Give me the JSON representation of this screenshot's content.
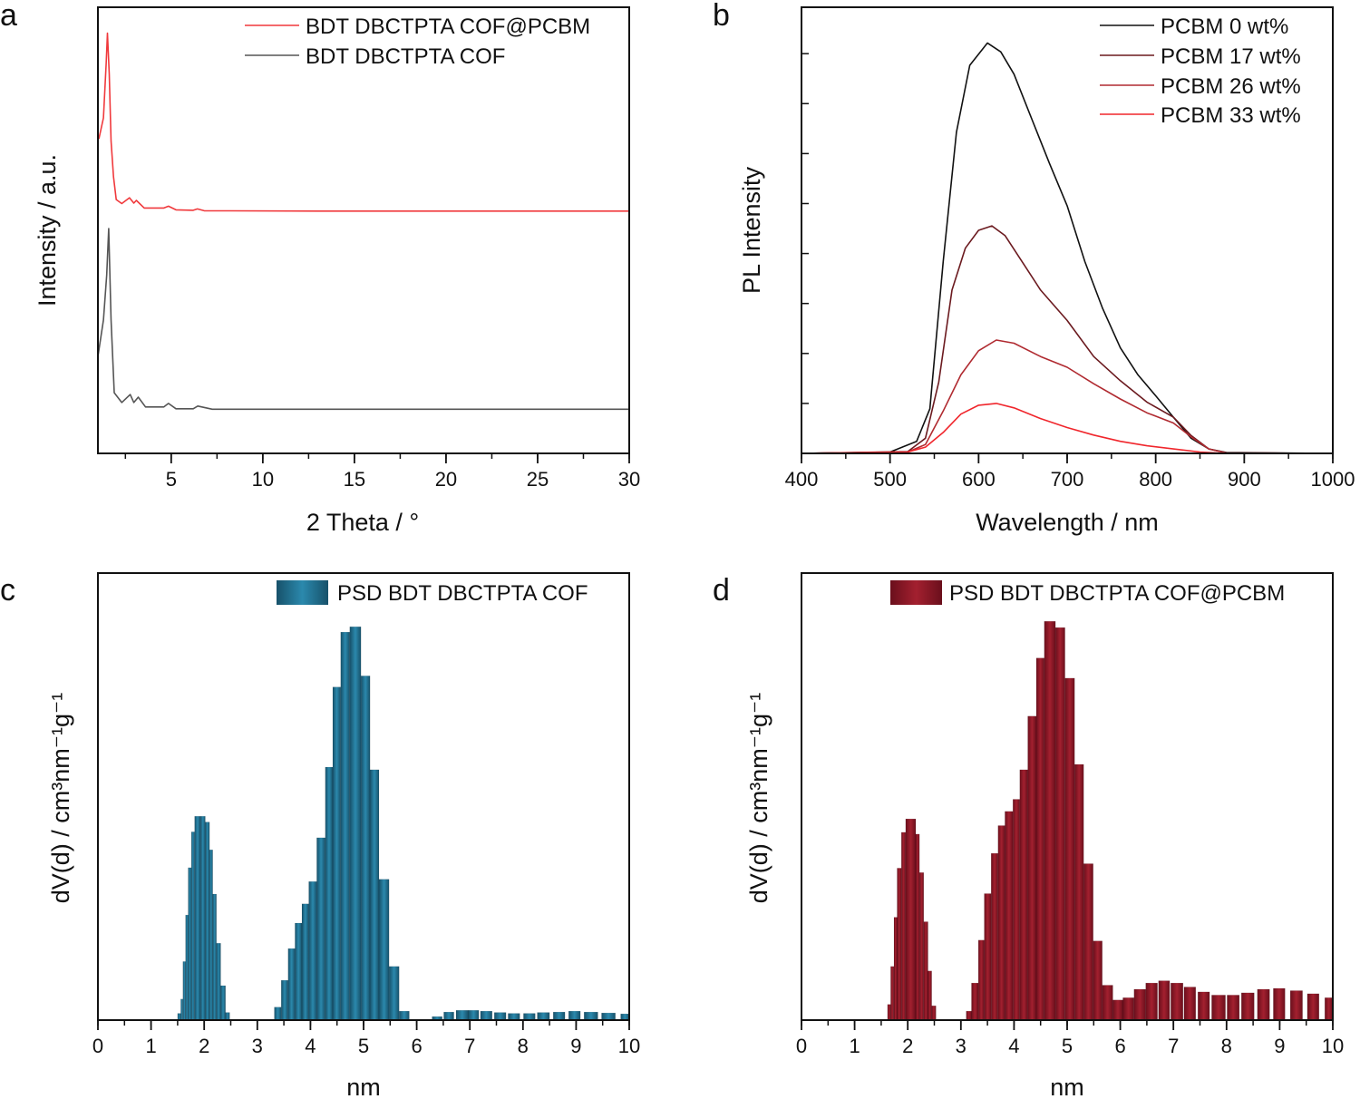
{
  "chart_data": [
    {
      "panel": "a",
      "type": "line",
      "xlabel": "2 Theta / °",
      "ylabel": "Intensity / a.u.",
      "xlim": [
        1,
        30
      ],
      "ylim": [
        0,
        100
      ],
      "xticks": [
        5,
        10,
        15,
        20,
        25,
        30
      ],
      "xminor_step": 2.5,
      "legend_position": "top-right",
      "series": [
        {
          "name": "BDT DBCTPTA COF@PCBM",
          "color": "#f0393c",
          "x": [
            1.0,
            1.06,
            1.3,
            1.45,
            1.52,
            1.62,
            1.72,
            1.85,
            2.0,
            2.3,
            2.72,
            2.96,
            3.1,
            3.53,
            4.6,
            4.85,
            5.26,
            6.2,
            6.43,
            6.8,
            13,
            30
          ],
          "y": [
            71.1,
            70.6,
            75.2,
            87.4,
            94.2,
            85,
            70,
            62,
            56.9,
            56,
            57.3,
            56.1,
            56.7,
            55,
            55,
            55.4,
            54.6,
            54.5,
            54.8,
            54.4,
            54.3,
            54.3
          ]
        },
        {
          "name": "BDT DBCTPTA COF",
          "color": "#555555",
          "x": [
            1.0,
            1.3,
            1.48,
            1.59,
            1.72,
            1.89,
            2.3,
            2.76,
            2.96,
            3.2,
            3.6,
            4.6,
            4.85,
            5.26,
            6.2,
            6.45,
            7.24,
            30
          ],
          "y": [
            21.7,
            29.9,
            40,
            50.4,
            29.9,
            13.6,
            11.4,
            13.2,
            11.4,
            12.6,
            10.4,
            10.4,
            11.2,
            10.0,
            10.0,
            10.6,
            9.9,
            9.9
          ]
        }
      ]
    },
    {
      "panel": "b",
      "type": "line",
      "xlabel": "Wavelength / nm",
      "ylabel": "PL Intensity",
      "xlim": [
        400,
        1000
      ],
      "ylim": [
        0,
        100
      ],
      "xticks": [
        400,
        500,
        600,
        700,
        800,
        900,
        1000
      ],
      "xminor_step": 50,
      "yticks_unlabeled": [
        11.2,
        22.4,
        33.6,
        44.8,
        56,
        67.2,
        78.4,
        89.6
      ],
      "legend_position": "top-right",
      "series": [
        {
          "name": "PCBM 0 wt%",
          "color": "#111111",
          "x": [
            400,
            500,
            530,
            545,
            560,
            575,
            590,
            610,
            625,
            640,
            660,
            680,
            700,
            720,
            740,
            760,
            780,
            800,
            820,
            840,
            860,
            880,
            1000
          ],
          "y": [
            0,
            0.3,
            2.7,
            10,
            43,
            72,
            87,
            92,
            90,
            85,
            75,
            65,
            55.5,
            43,
            32.5,
            23.7,
            17.6,
            12.9,
            8.1,
            3.4,
            1,
            0.2,
            0
          ]
        },
        {
          "name": "PCBM 17 wt%",
          "color": "#6b1a1f",
          "x": [
            400,
            520,
            540,
            555,
            570,
            585,
            600,
            615,
            630,
            650,
            670,
            700,
            730,
            760,
            790,
            820,
            840,
            860,
            880,
            1000
          ],
          "y": [
            0,
            0.4,
            3.4,
            16,
            36.6,
            46,
            50,
            51,
            48.8,
            42.7,
            36.6,
            29.8,
            21.7,
            16.3,
            11.5,
            8.1,
            4,
            1,
            0.1,
            0
          ]
        },
        {
          "name": "PCBM 26 wt%",
          "color": "#b02a30",
          "x": [
            400,
            520,
            540,
            560,
            580,
            600,
            620,
            640,
            670,
            700,
            730,
            760,
            790,
            820,
            840,
            860,
            880,
            1000
          ],
          "y": [
            0,
            0.3,
            2,
            9.5,
            17.6,
            23,
            25.4,
            24.7,
            21.7,
            19.3,
            15.6,
            12.2,
            9.1,
            6.8,
            3.7,
            1,
            0.1,
            0
          ]
        },
        {
          "name": "PCBM 33 wt%",
          "color": "#f0262c",
          "x": [
            400,
            520,
            540,
            560,
            580,
            600,
            620,
            640,
            670,
            700,
            730,
            760,
            790,
            820,
            850,
            880,
            1000
          ],
          "y": [
            0,
            0.3,
            1.4,
            4.7,
            8.8,
            10.8,
            11.2,
            10.2,
            7.8,
            5.8,
            4.1,
            2.7,
            1.7,
            1,
            0.3,
            0,
            0
          ]
        }
      ]
    },
    {
      "panel": "c",
      "type": "bar",
      "xlabel": "nm",
      "ylabel": "dV(d) / cm³nm⁻¹g⁻¹",
      "xlim": [
        0,
        10
      ],
      "ylim": [
        0,
        100
      ],
      "xticks": [
        0,
        1,
        2,
        3,
        4,
        5,
        6,
        7,
        8,
        9,
        10
      ],
      "xminor_step": 0.5,
      "legend_position": "top-right",
      "series": [
        {
          "name": "PSD BDT DBCTPTA COF",
          "color": "#1f6a88",
          "bins": [
            [
              1.5,
              1.56,
              1.5
            ],
            [
              1.56,
              1.6,
              4.7
            ],
            [
              1.6,
              1.65,
              13.1
            ],
            [
              1.65,
              1.7,
              23.5
            ],
            [
              1.7,
              1.76,
              34.1
            ],
            [
              1.76,
              1.82,
              42.1
            ],
            [
              1.82,
              1.93,
              45.6
            ],
            [
              1.93,
              2.02,
              45.6
            ],
            [
              2.02,
              2.1,
              44.3
            ],
            [
              2.1,
              2.16,
              38.1
            ],
            [
              2.16,
              2.23,
              28.2
            ],
            [
              2.23,
              2.31,
              17.2
            ],
            [
              2.31,
              2.4,
              7.7
            ],
            [
              2.4,
              2.48,
              1.7
            ],
            [
              3.32,
              3.45,
              2.9
            ],
            [
              3.45,
              3.58,
              8.9
            ],
            [
              3.58,
              3.71,
              16
            ],
            [
              3.71,
              3.84,
              21.7
            ],
            [
              3.84,
              3.97,
              26
            ],
            [
              3.97,
              4.12,
              31
            ],
            [
              4.12,
              4.28,
              40.8
            ],
            [
              4.28,
              4.42,
              56.6
            ],
            [
              4.42,
              4.57,
              74.5
            ],
            [
              4.57,
              4.74,
              86.8
            ],
            [
              4.74,
              4.95,
              88
            ],
            [
              4.95,
              5.12,
              77
            ],
            [
              5.12,
              5.29,
              56
            ],
            [
              5.29,
              5.48,
              31.5
            ],
            [
              5.48,
              5.67,
              12
            ],
            [
              5.67,
              5.86,
              2
            ],
            [
              6.29,
              6.48,
              0.8
            ],
            [
              6.51,
              6.7,
              1.8
            ],
            [
              6.74,
              6.97,
              2.2
            ],
            [
              6.97,
              7.17,
              2.2
            ],
            [
              7.2,
              7.42,
              2
            ],
            [
              7.46,
              7.68,
              1.7
            ],
            [
              7.72,
              7.94,
              1.5
            ],
            [
              8.01,
              8.23,
              1.5
            ],
            [
              8.27,
              8.5,
              1.7
            ],
            [
              8.57,
              8.79,
              1.8
            ],
            [
              8.86,
              9.08,
              2
            ],
            [
              9.15,
              9.41,
              1.8
            ],
            [
              9.48,
              9.74,
              1.6
            ],
            [
              9.84,
              10.0,
              1.4
            ]
          ]
        }
      ]
    },
    {
      "panel": "d",
      "type": "bar",
      "xlabel": "nm",
      "ylabel": "dV(d) / cm³nm⁻¹g⁻¹",
      "xlim": [
        0,
        10
      ],
      "ylim": [
        0,
        100
      ],
      "xticks": [
        0,
        1,
        2,
        3,
        4,
        5,
        6,
        7,
        8,
        9,
        10
      ],
      "xminor_step": 0.5,
      "legend_position": "top-right",
      "series": [
        {
          "name": "PSD BDT DBCTPTA COF@PCBM",
          "color": "#8a1a28",
          "bins": [
            [
              1.62,
              1.68,
              3.5
            ],
            [
              1.68,
              1.74,
              12
            ],
            [
              1.74,
              1.8,
              23
            ],
            [
              1.8,
              1.88,
              34
            ],
            [
              1.88,
              1.96,
              42
            ],
            [
              1.96,
              2.15,
              45
            ],
            [
              2.15,
              2.22,
              41.6
            ],
            [
              2.22,
              2.3,
              33
            ],
            [
              2.3,
              2.38,
              22
            ],
            [
              2.38,
              2.45,
              11
            ],
            [
              2.45,
              2.53,
              3.2
            ],
            [
              3.1,
              3.2,
              2
            ],
            [
              3.2,
              3.33,
              8.3
            ],
            [
              3.33,
              3.44,
              17.9
            ],
            [
              3.44,
              3.57,
              28.3
            ],
            [
              3.57,
              3.7,
              37.3
            ],
            [
              3.7,
              3.83,
              43.5
            ],
            [
              3.83,
              3.98,
              46.7
            ],
            [
              3.98,
              4.11,
              49.4
            ],
            [
              4.11,
              4.26,
              56
            ],
            [
              4.26,
              4.42,
              68
            ],
            [
              4.42,
              4.57,
              81
            ],
            [
              4.57,
              4.78,
              89.2
            ],
            [
              4.78,
              4.96,
              87.8
            ],
            [
              4.96,
              5.14,
              76.5
            ],
            [
              5.14,
              5.31,
              57.2
            ],
            [
              5.31,
              5.49,
              35
            ],
            [
              5.49,
              5.66,
              17.7
            ],
            [
              5.66,
              5.86,
              7.8
            ],
            [
              5.86,
              6.05,
              4.5
            ],
            [
              6.05,
              6.26,
              5
            ],
            [
              6.26,
              6.48,
              6.9
            ],
            [
              6.48,
              6.7,
              8.3
            ],
            [
              6.72,
              6.93,
              8.8
            ],
            [
              6.95,
              7.18,
              8.3
            ],
            [
              7.2,
              7.42,
              7.4
            ],
            [
              7.46,
              7.68,
              6.3
            ],
            [
              7.72,
              7.98,
              5.6
            ],
            [
              8.01,
              8.24,
              5.6
            ],
            [
              8.28,
              8.52,
              6.1
            ],
            [
              8.58,
              8.81,
              6.9
            ],
            [
              8.88,
              9.1,
              7.1
            ],
            [
              9.2,
              9.43,
              6.6
            ],
            [
              9.52,
              9.74,
              5.9
            ],
            [
              9.85,
              10.0,
              5
            ]
          ]
        }
      ]
    }
  ],
  "panel_letters": [
    "a",
    "b",
    "c",
    "d"
  ]
}
